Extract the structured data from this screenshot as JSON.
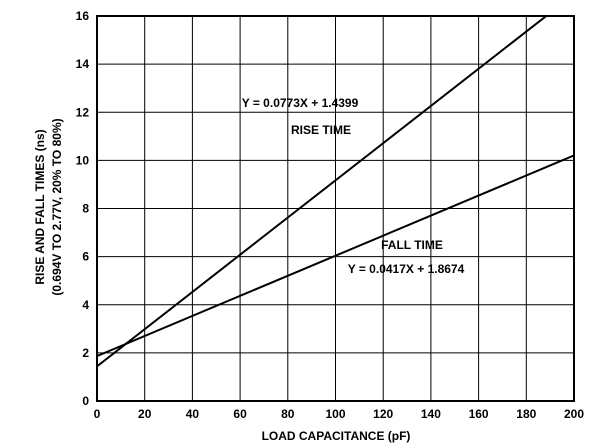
{
  "chart_data": {
    "type": "line",
    "xlabel": "LOAD CAPACITANCE (pF)",
    "ylabel": [
      "RISE AND FALL TIMES (ns)",
      "(0.694V TO 2.77V, 20% TO 80%)"
    ],
    "xlim": [
      0,
      200
    ],
    "ylim": [
      0,
      16
    ],
    "x_ticks": [
      0,
      20,
      40,
      60,
      80,
      100,
      120,
      140,
      160,
      180,
      200
    ],
    "y_ticks": [
      0,
      2,
      4,
      6,
      8,
      10,
      12,
      14,
      16
    ],
    "grid": true,
    "series": [
      {
        "name": "RISE TIME",
        "equation": "Y = 0.0773X + 1.4399",
        "slope": 0.0773,
        "intercept": 1.4399,
        "x": [
          0,
          200
        ]
      },
      {
        "name": "FALL TIME",
        "equation": "Y = 0.0417X + 1.8674",
        "slope": 0.0417,
        "intercept": 1.8674,
        "x": [
          0,
          200
        ]
      }
    ]
  }
}
